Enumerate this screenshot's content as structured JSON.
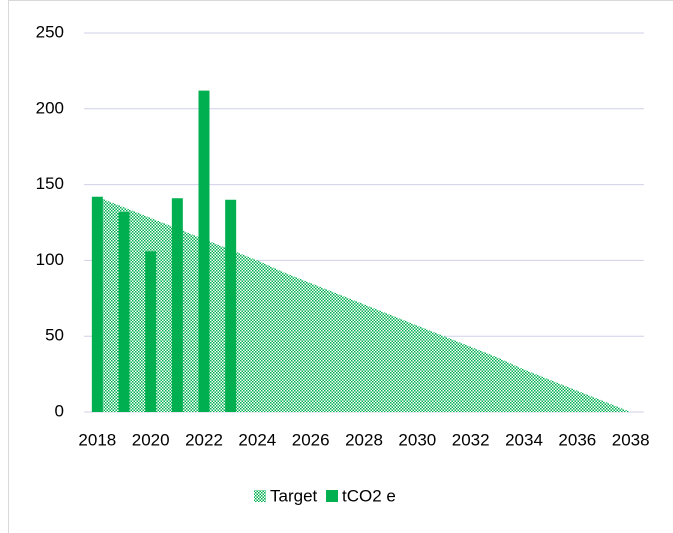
{
  "chart_data": {
    "type": "bar",
    "categories": [
      "2018",
      null,
      "2020",
      null,
      "2022",
      null,
      "2024",
      null,
      "2026",
      null,
      "2028",
      null,
      "2030",
      null,
      "2032",
      null,
      "2034",
      null,
      "2036",
      null,
      "2038"
    ],
    "series": [
      {
        "name": "Target",
        "type": "area",
        "color": "#00b050",
        "values": [
          142,
          135,
          128,
          121,
          114,
          107,
          100,
          92,
          85,
          78,
          71,
          64,
          57,
          50,
          43,
          36,
          28,
          21,
          14,
          7,
          0
        ]
      },
      {
        "name": "tCO2 e",
        "type": "bar",
        "color": "#00b050",
        "values": [
          142,
          132,
          106,
          141,
          212,
          140,
          null,
          null,
          null,
          null,
          null,
          null,
          null,
          null,
          null,
          null,
          null,
          null,
          null,
          null,
          null
        ]
      }
    ],
    "ylim": [
      0,
      250
    ],
    "yticks": [
      0,
      50,
      100,
      150,
      200,
      250
    ],
    "grid": true,
    "legend": "bottom"
  }
}
